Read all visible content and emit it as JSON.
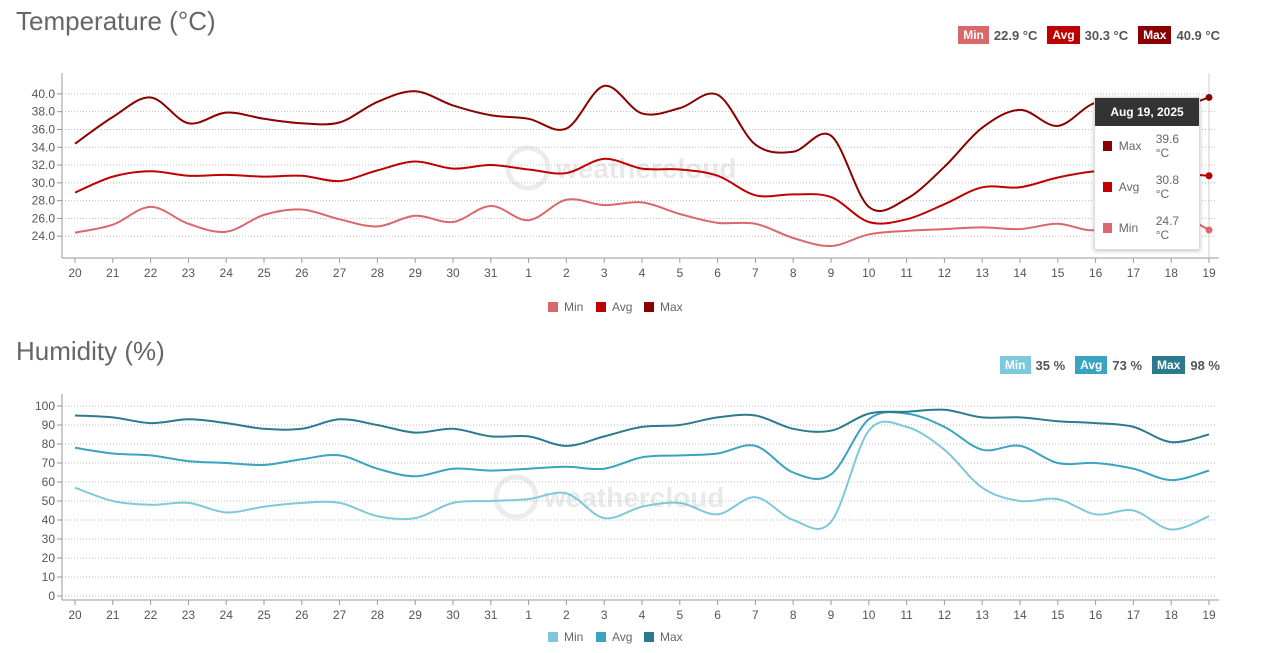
{
  "x_labels": [
    "20",
    "21",
    "22",
    "23",
    "24",
    "25",
    "26",
    "27",
    "28",
    "29",
    "30",
    "31",
    "1",
    "2",
    "3",
    "4",
    "5",
    "6",
    "7",
    "8",
    "9",
    "10",
    "11",
    "12",
    "13",
    "14",
    "15",
    "16",
    "17",
    "18",
    "19"
  ],
  "watermark": "weathercloud",
  "temperature": {
    "title": "Temperature (°C)",
    "stats": [
      {
        "label": "Min",
        "value": "22.9 °C",
        "color": "#d9686b"
      },
      {
        "label": "Avg",
        "value": "30.3 °C",
        "color": "#c00000"
      },
      {
        "label": "Max",
        "value": "40.9 °C",
        "color": "#8b0000"
      }
    ],
    "tooltip": {
      "date": "Aug 19, 2025",
      "rows": [
        {
          "name": "Max",
          "value": "39.6 °C",
          "color": "#8b0000"
        },
        {
          "name": "Avg",
          "value": "30.8 °C",
          "color": "#c00000"
        },
        {
          "name": "Min",
          "value": "24.7 °C",
          "color": "#d9686b"
        }
      ]
    }
  },
  "humidity": {
    "title": "Humidity (%)",
    "stats": [
      {
        "label": "Min",
        "value": "35 %",
        "color": "#7ec8dc"
      },
      {
        "label": "Avg",
        "value": "73 %",
        "color": "#3aa3c1"
      },
      {
        "label": "Max",
        "value": "98 %",
        "color": "#2b7a8e"
      }
    ]
  },
  "chart_data": [
    {
      "type": "line",
      "title": "Temperature (°C)",
      "x": [
        "20",
        "21",
        "22",
        "23",
        "24",
        "25",
        "26",
        "27",
        "28",
        "29",
        "30",
        "31",
        "1",
        "2",
        "3",
        "4",
        "5",
        "6",
        "7",
        "8",
        "9",
        "10",
        "11",
        "12",
        "13",
        "14",
        "15",
        "16",
        "17",
        "18",
        "19"
      ],
      "ylim": [
        22.0,
        41.0
      ],
      "yticks": [
        "24.0",
        "26.0",
        "28.0",
        "30.0",
        "32.0",
        "34.0",
        "36.0",
        "38.0",
        "40.0"
      ],
      "grid": true,
      "legend": "bottom",
      "series": [
        {
          "name": "Min",
          "color": "#d9686b",
          "values": [
            24.4,
            25.3,
            27.3,
            25.4,
            24.5,
            26.4,
            27.0,
            25.9,
            25.1,
            26.3,
            25.6,
            27.4,
            25.8,
            28.1,
            27.5,
            27.8,
            26.5,
            25.5,
            25.4,
            23.8,
            22.9,
            24.2,
            24.6,
            24.8,
            25.0,
            24.8,
            25.4,
            24.7,
            26.7,
            26.8,
            24.7
          ]
        },
        {
          "name": "Avg",
          "color": "#c00000",
          "values": [
            28.9,
            30.7,
            31.3,
            30.8,
            30.9,
            30.7,
            30.8,
            30.2,
            31.4,
            32.4,
            31.6,
            32.0,
            31.5,
            31.1,
            32.7,
            31.6,
            31.5,
            30.8,
            28.6,
            28.7,
            28.4,
            25.6,
            25.9,
            27.6,
            29.5,
            29.5,
            30.6,
            31.3,
            31.4,
            31.1,
            30.8
          ]
        },
        {
          "name": "Max",
          "color": "#8b0000",
          "values": [
            34.4,
            37.4,
            39.6,
            36.7,
            37.9,
            37.2,
            36.7,
            36.8,
            39.1,
            40.3,
            38.7,
            37.6,
            37.2,
            36.1,
            40.9,
            37.8,
            38.4,
            39.9,
            34.3,
            33.5,
            35.3,
            27.3,
            28.2,
            31.8,
            36.2,
            38.2,
            36.4,
            39.0,
            38.6,
            38.3,
            39.6
          ]
        }
      ]
    },
    {
      "type": "line",
      "title": "Humidity (%)",
      "x": [
        "20",
        "21",
        "22",
        "23",
        "24",
        "25",
        "26",
        "27",
        "28",
        "29",
        "30",
        "31",
        "1",
        "2",
        "3",
        "4",
        "5",
        "6",
        "7",
        "8",
        "9",
        "10",
        "11",
        "12",
        "13",
        "14",
        "15",
        "16",
        "17",
        "18",
        "19"
      ],
      "ylim": [
        0,
        100
      ],
      "yticks": [
        "0",
        "10",
        "20",
        "30",
        "40",
        "50",
        "60",
        "70",
        "80",
        "90",
        "100"
      ],
      "grid": true,
      "legend": "bottom",
      "series": [
        {
          "name": "Min",
          "color": "#7ec8dc",
          "values": [
            57,
            50,
            48,
            49,
            44,
            47,
            49,
            49,
            42,
            41,
            49,
            50,
            51,
            54,
            41,
            47,
            49,
            43,
            52,
            40,
            39,
            87,
            89,
            77,
            57,
            50,
            51,
            43,
            45,
            35,
            42
          ]
        },
        {
          "name": "Avg",
          "color": "#3aa3c1",
          "values": [
            78,
            75,
            74,
            71,
            70,
            69,
            72,
            74,
            67,
            63,
            67,
            66,
            67,
            68,
            67,
            73,
            74,
            75,
            79,
            65,
            64,
            93,
            96,
            89,
            77,
            79,
            70,
            70,
            67,
            61,
            66
          ]
        },
        {
          "name": "Max",
          "color": "#2b7a8e",
          "values": [
            95,
            94,
            91,
            93,
            91,
            88,
            88,
            93,
            90,
            86,
            88,
            84,
            84,
            79,
            84,
            89,
            90,
            94,
            95,
            88,
            87,
            96,
            97,
            98,
            94,
            94,
            92,
            91,
            89,
            81,
            85
          ]
        }
      ]
    }
  ]
}
